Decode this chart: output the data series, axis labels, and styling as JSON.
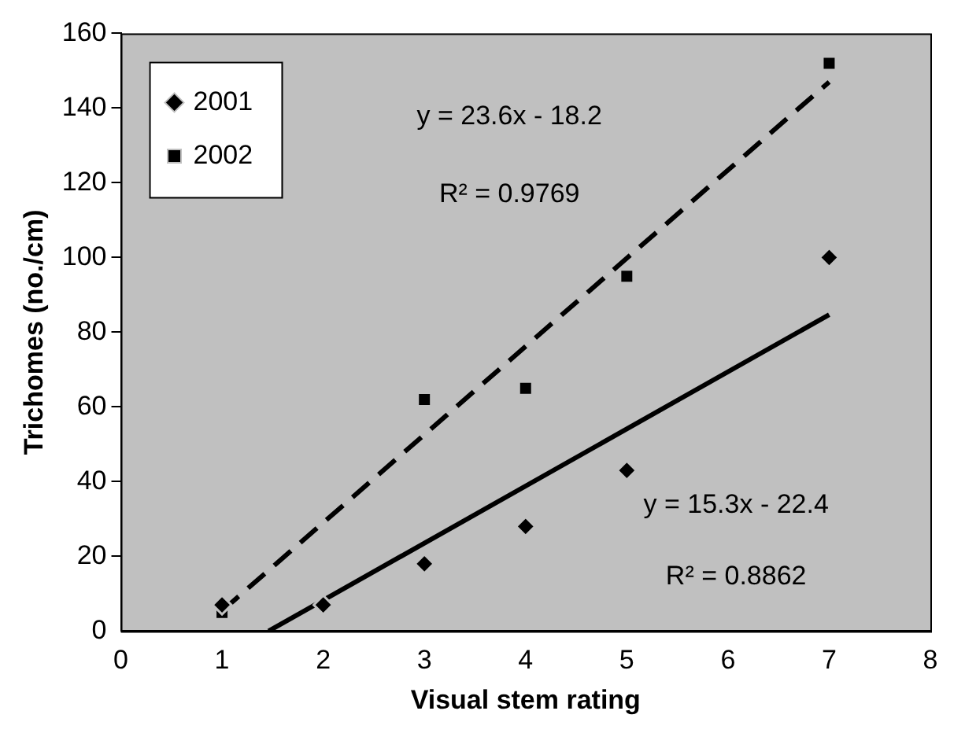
{
  "chart_data": {
    "type": "scatter",
    "xlabel": "Visual stem rating",
    "ylabel": "Trichomes (no./cm)",
    "xlim": [
      0,
      8
    ],
    "xticks": [
      0,
      1,
      2,
      3,
      4,
      5,
      6,
      7,
      8
    ],
    "ylim": [
      0,
      160
    ],
    "yticks": [
      0,
      20,
      40,
      60,
      80,
      100,
      120,
      140,
      160
    ],
    "grid": false,
    "legend": "top left",
    "series": [
      {
        "name": "2001",
        "color": "#000000",
        "marker": "diamond",
        "x": [
          1,
          2,
          3,
          4,
          5,
          7
        ],
        "values": [
          7,
          7,
          18,
          28,
          43,
          100
        ]
      },
      {
        "name": "2002",
        "color": "#000000",
        "marker": "square",
        "x": [
          1,
          3,
          4,
          5,
          7
        ],
        "values": [
          5,
          62,
          65,
          95,
          152
        ]
      },
      {
        "type": "line",
        "color": "#000000",
        "marker": "none",
        "line_style": "solid",
        "x": [
          1.46,
          7
        ],
        "values": [
          0,
          84.7
        ]
      },
      {
        "type": "line",
        "color": "#000000",
        "marker": "none",
        "line_style": "dashed",
        "x": [
          1,
          7
        ],
        "values": [
          5.4,
          147
        ]
      }
    ],
    "annotations": [
      "y = 23.6x - 18.2",
      "R² = 0.9769",
      "y = 15.3x - 22.4",
      "R² = 0.8862"
    ]
  }
}
